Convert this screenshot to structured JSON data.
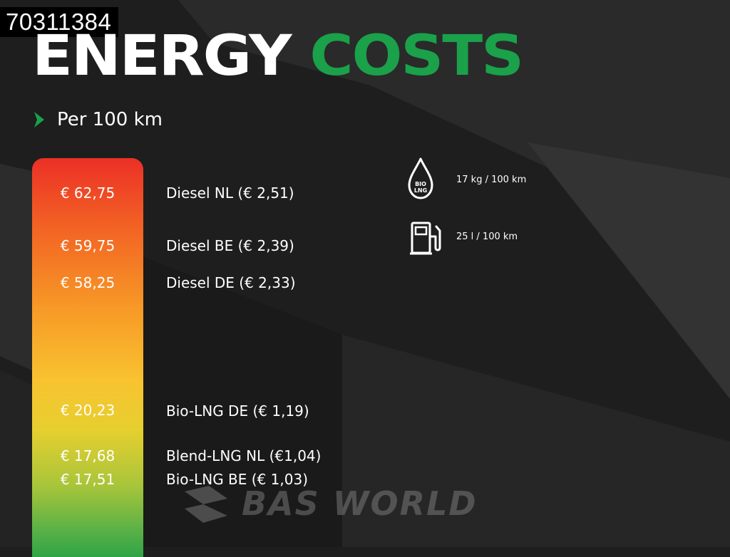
{
  "listing_id": "70311384",
  "title": {
    "word1": "ENERGY",
    "word2": "COSTS"
  },
  "subtitle": "Per 100 km",
  "colors": {
    "accent": "#1aa14a",
    "bar_top": "#ec3026",
    "bar_bottom": "#2fa447"
  },
  "rows": [
    {
      "cost": "€ 62,75",
      "label": "Diesel NL (€ 2,51)"
    },
    {
      "cost": "€ 59,75",
      "label": "Diesel BE (€ 2,39)"
    },
    {
      "cost": "€ 58,25",
      "label": "Diesel DE (€ 2,33)"
    },
    {
      "cost": "€ 20,23",
      "label": "Bio-LNG DE (€ 1,19)"
    },
    {
      "cost": "€ 17,68",
      "label": "Blend-LNG NL (€1,04)"
    },
    {
      "cost": "€ 17,51",
      "label": "Bio-LNG BE (€ 1,03)"
    }
  ],
  "legend": [
    {
      "icon": "bio-lng-drop-icon",
      "icon_line1": "BIO",
      "icon_line2": "LNG",
      "text": "17 kg / 100 km"
    },
    {
      "icon": "fuel-pump-icon",
      "text": "25 l / 100 km"
    }
  ],
  "watermark": {
    "icon": "bas-world-logo-icon",
    "text": "BAS WORLD"
  }
}
